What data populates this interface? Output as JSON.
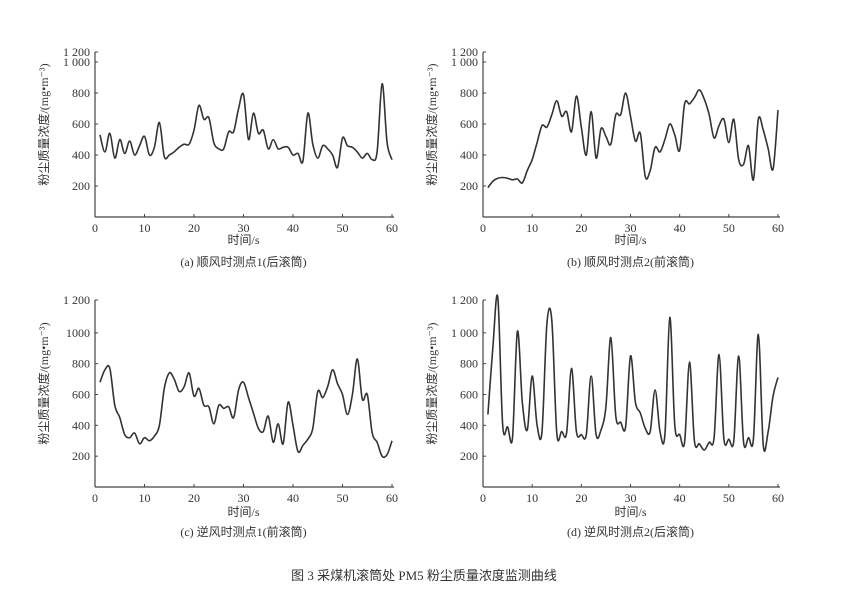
{
  "figure_caption": "图 3   采煤机滚筒处 PM5 粉尘质量浓度监测曲线",
  "chart_data": [
    {
      "type": "line",
      "caption": "(a) 顺风时测点1(后滚筒)",
      "xlabel": "时间/s",
      "ylabel": "粉尘质量浓度/(mg•m⁻³)",
      "xlim": [
        0,
        60
      ],
      "ylim": [
        0,
        1200
      ],
      "xticks": [
        0,
        10,
        20,
        30,
        40,
        50,
        60
      ],
      "xtick_labels": [
        "0",
        "10",
        "20",
        "30",
        "40",
        "50",
        "60"
      ],
      "yticks": [
        200,
        400,
        600,
        800,
        1000,
        1200
      ],
      "ytick_labels": [
        "200",
        "400",
        "600",
        "800",
        "1 000",
        "1 200"
      ],
      "grid": false,
      "line_color": "#333333",
      "x": [
        1,
        2,
        3,
        4,
        5,
        6,
        7,
        8,
        9,
        10,
        11,
        12,
        13,
        14,
        15,
        16,
        17,
        18,
        19,
        20,
        21,
        22,
        23,
        24,
        25,
        26,
        27,
        28,
        29,
        30,
        31,
        32,
        33,
        34,
        35,
        36,
        37,
        38,
        39,
        40,
        41,
        42,
        43,
        44,
        45,
        46,
        47,
        48,
        49,
        50,
        51,
        52,
        53,
        54,
        55,
        56,
        57,
        58,
        59,
        60
      ],
      "y": [
        530,
        420,
        540,
        380,
        500,
        410,
        490,
        400,
        460,
        520,
        400,
        450,
        610,
        390,
        400,
        420,
        450,
        470,
        470,
        560,
        720,
        630,
        640,
        480,
        440,
        440,
        550,
        550,
        700,
        790,
        500,
        670,
        540,
        560,
        440,
        500,
        440,
        450,
        450,
        400,
        410,
        360,
        670,
        470,
        380,
        460,
        440,
        400,
        320,
        510,
        460,
        450,
        420,
        380,
        410,
        370,
        420,
        860,
        480,
        370
      ]
    },
    {
      "type": "line",
      "caption": "(b) 顺风时测点2(前滚筒)",
      "xlabel": "时间/s",
      "ylabel": "粉尘质量浓度/(mg•m⁻³)",
      "xlim": [
        0,
        60
      ],
      "ylim": [
        0,
        1200
      ],
      "xticks": [
        0,
        10,
        20,
        30,
        40,
        50,
        60
      ],
      "xtick_labels": [
        "0",
        "10",
        "20",
        "30",
        "40",
        "50",
        "60"
      ],
      "yticks": [
        200,
        400,
        600,
        800,
        1000,
        1200
      ],
      "ytick_labels": [
        "200",
        "400",
        "600",
        "800",
        "1 000",
        "1 200"
      ],
      "grid": false,
      "line_color": "#333333",
      "x": [
        1,
        2,
        3,
        4,
        5,
        6,
        7,
        8,
        9,
        10,
        11,
        12,
        13,
        14,
        15,
        16,
        17,
        18,
        19,
        20,
        21,
        22,
        23,
        24,
        25,
        26,
        27,
        28,
        29,
        30,
        31,
        32,
        33,
        34,
        35,
        36,
        37,
        38,
        39,
        40,
        41,
        42,
        43,
        44,
        45,
        46,
        47,
        48,
        49,
        50,
        51,
        52,
        53,
        54,
        55,
        56,
        57,
        58,
        59,
        60
      ],
      "y": [
        190,
        230,
        250,
        255,
        250,
        240,
        245,
        220,
        300,
        370,
        480,
        590,
        580,
        660,
        750,
        650,
        680,
        550,
        780,
        580,
        400,
        680,
        380,
        570,
        520,
        470,
        660,
        660,
        800,
        650,
        490,
        540,
        260,
        300,
        450,
        420,
        500,
        600,
        530,
        430,
        730,
        730,
        770,
        820,
        760,
        660,
        510,
        590,
        630,
        480,
        630,
        370,
        340,
        460,
        240,
        630,
        560,
        440,
        310,
        690
      ]
    },
    {
      "type": "line",
      "caption": "(c) 逆风时测点1(前滚筒)",
      "xlabel": "时间/s",
      "ylabel": "粉尘质量浓度/(mg•m⁻³)",
      "xlim": [
        0,
        60
      ],
      "ylim": [
        0,
        1200
      ],
      "xticks": [
        0,
        10,
        20,
        30,
        40,
        50,
        60
      ],
      "xtick_labels": [
        "0",
        "10",
        "20",
        "30",
        "40",
        "50",
        "60"
      ],
      "yticks": [
        200,
        400,
        600,
        800,
        1000,
        1200
      ],
      "ytick_labels": [
        "200",
        "400",
        "600",
        "800",
        "1000",
        "1 200"
      ],
      "grid": false,
      "line_color": "#333333",
      "x": [
        1,
        2,
        3,
        4,
        5,
        6,
        7,
        8,
        9,
        10,
        11,
        12,
        13,
        14,
        15,
        16,
        17,
        18,
        19,
        20,
        21,
        22,
        23,
        24,
        25,
        26,
        27,
        28,
        29,
        30,
        31,
        32,
        33,
        34,
        35,
        36,
        37,
        38,
        39,
        40,
        41,
        42,
        43,
        44,
        45,
        46,
        47,
        48,
        49,
        50,
        51,
        52,
        53,
        54,
        55,
        56,
        57,
        58,
        59,
        60
      ],
      "y": [
        680,
        760,
        770,
        530,
        450,
        340,
        320,
        350,
        280,
        320,
        300,
        330,
        400,
        640,
        740,
        700,
        620,
        650,
        740,
        590,
        640,
        530,
        520,
        410,
        530,
        510,
        520,
        450,
        630,
        680,
        580,
        480,
        380,
        360,
        460,
        290,
        410,
        280,
        550,
        400,
        230,
        270,
        310,
        380,
        620,
        580,
        650,
        760,
        670,
        600,
        470,
        600,
        830,
        570,
        600,
        350,
        290,
        200,
        210,
        300
      ]
    },
    {
      "type": "line",
      "caption": "(d) 逆风时测点2(后滚筒)",
      "xlabel": "时间/s",
      "ylabel": "粉尘质量浓度/(mg•m⁻³)",
      "xlim": [
        0,
        60
      ],
      "ylim": [
        0,
        1200
      ],
      "xticks": [
        0,
        10,
        20,
        30,
        40,
        50,
        60
      ],
      "xtick_labels": [
        "0",
        "10",
        "20",
        "30",
        "40",
        "50",
        "60"
      ],
      "yticks": [
        200,
        400,
        600,
        800,
        1000,
        1200
      ],
      "ytick_labels": [
        "200",
        "400",
        "600",
        "800",
        "1 000",
        "1 200"
      ],
      "grid": false,
      "line_color": "#333333",
      "x": [
        1,
        2,
        3,
        4,
        5,
        6,
        7,
        8,
        9,
        10,
        11,
        12,
        13,
        14,
        15,
        16,
        17,
        18,
        19,
        20,
        21,
        22,
        23,
        24,
        25,
        26,
        27,
        28,
        29,
        30,
        31,
        32,
        33,
        34,
        35,
        36,
        37,
        38,
        39,
        40,
        41,
        42,
        43,
        44,
        45,
        46,
        47,
        48,
        49,
        50,
        51,
        52,
        53,
        54,
        55,
        56,
        57,
        58,
        59,
        60
      ],
      "y": [
        470,
        900,
        1230,
        400,
        390,
        320,
        1010,
        550,
        370,
        720,
        400,
        360,
        1060,
        1080,
        350,
        360,
        350,
        770,
        360,
        340,
        340,
        720,
        340,
        370,
        520,
        970,
        460,
        420,
        390,
        850,
        550,
        480,
        380,
        360,
        630,
        360,
        340,
        1100,
        400,
        340,
        290,
        810,
        300,
        280,
        240,
        290,
        320,
        860,
        310,
        310,
        300,
        850,
        290,
        320,
        310,
        990,
        270,
        360,
        590,
        710
      ]
    }
  ]
}
